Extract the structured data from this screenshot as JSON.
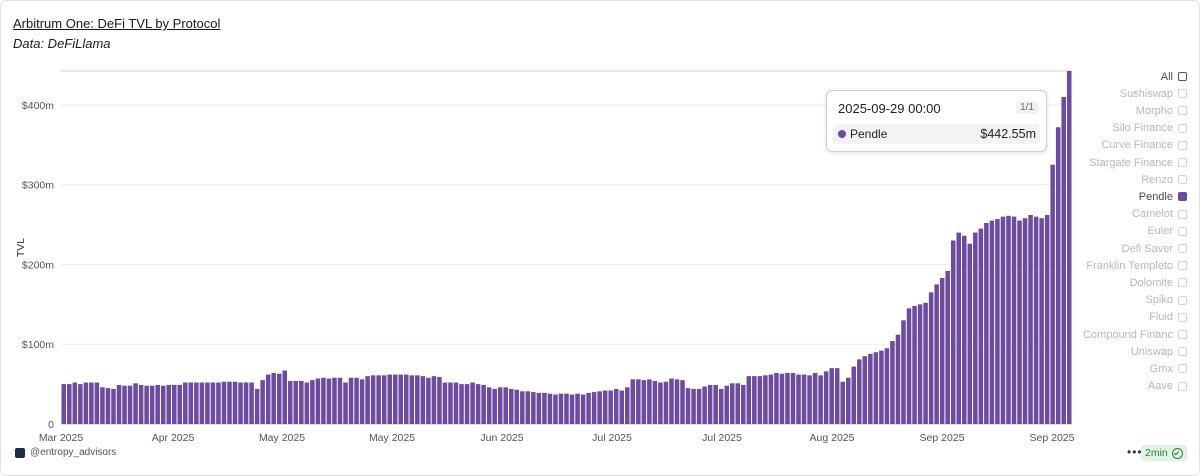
{
  "header": {
    "title": "Arbitrum One: DeFi TVL by Protocol",
    "subtitle": "Data: DeFiLlama"
  },
  "chart_data": {
    "type": "bar",
    "ylabel": "TVL",
    "ylim": [
      0,
      442.55
    ],
    "y_ticks": [
      {
        "value": 0,
        "label": "0"
      },
      {
        "value": 100,
        "label": "$100m"
      },
      {
        "value": 200,
        "label": "$200m"
      },
      {
        "value": 300,
        "label": "$300m"
      },
      {
        "value": 400,
        "label": "$400m"
      }
    ],
    "x_ticks": [
      "Mar 2025",
      "Apr 2025",
      "May 2025",
      "May 2025",
      "Jun 2025",
      "Jul 2025",
      "Jul 2025",
      "Aug 2025",
      "Sep 2025",
      "Sep 2025"
    ],
    "bar_color": "#6d4b9e",
    "grid": true,
    "legend_position": "right",
    "series": [
      {
        "name": "Pendle",
        "values": [
          50,
          50,
          52,
          50,
          52,
          52,
          52,
          46,
          45,
          44,
          49,
          48,
          48,
          51,
          49,
          48,
          48,
          49,
          48,
          49,
          49,
          49,
          52,
          52,
          52,
          52,
          52,
          52,
          52,
          53,
          53,
          53,
          52,
          52,
          52,
          44,
          55,
          62,
          64,
          63,
          67,
          54,
          54,
          54,
          52,
          55,
          57,
          58,
          57,
          58,
          58,
          52,
          58,
          58,
          56,
          60,
          61,
          61,
          61,
          62,
          62,
          62,
          62,
          61,
          61,
          60,
          58,
          60,
          59,
          52,
          52,
          52,
          50,
          50,
          52,
          50,
          49,
          46,
          44,
          46,
          46,
          44,
          43,
          41,
          41,
          40,
          39,
          39,
          38,
          37,
          38,
          38,
          37,
          38,
          37,
          39,
          40,
          41,
          42,
          42,
          44,
          42,
          46,
          56,
          56,
          55,
          56,
          54,
          52,
          53,
          57,
          56,
          55,
          45,
          44,
          44,
          47,
          49,
          49,
          44,
          48,
          51,
          51,
          49,
          60,
          60,
          60,
          61,
          62,
          64,
          63,
          64,
          64,
          62,
          62,
          61,
          64,
          61,
          66,
          70,
          70,
          53,
          58,
          72,
          81,
          85,
          88,
          90,
          92,
          95,
          104,
          112,
          130,
          145,
          148,
          150,
          152,
          165,
          175,
          183,
          192,
          230,
          240,
          236,
          226,
          240,
          245,
          252,
          255,
          257,
          260,
          261,
          260,
          255,
          258,
          262,
          260,
          258,
          262,
          325,
          372,
          410,
          442.55
        ]
      }
    ],
    "tooltip": {
      "date": "2025-09-29 00:00",
      "page": "1/1",
      "series": "Pendle",
      "value": "$442.55m"
    }
  },
  "legend": {
    "items": [
      {
        "label": "All",
        "state": "active"
      },
      {
        "label": "Sushiswap",
        "state": "inactive"
      },
      {
        "label": "Morpho",
        "state": "inactive"
      },
      {
        "label": "Silo Finance",
        "state": "inactive"
      },
      {
        "label": "Curve Finance",
        "state": "inactive"
      },
      {
        "label": "Stargate Finance",
        "state": "inactive"
      },
      {
        "label": "Renzo",
        "state": "inactive"
      },
      {
        "label": "Pendle",
        "state": "selected"
      },
      {
        "label": "Camelot",
        "state": "inactive"
      },
      {
        "label": "Euler",
        "state": "inactive"
      },
      {
        "label": "Defi Saver",
        "state": "inactive"
      },
      {
        "label": "Franklin Templeto",
        "state": "inactive"
      },
      {
        "label": "Dolomite",
        "state": "inactive"
      },
      {
        "label": "Spiko",
        "state": "inactive"
      },
      {
        "label": "Fluid",
        "state": "inactive"
      },
      {
        "label": "Compound Financ",
        "state": "inactive"
      },
      {
        "label": "Uniswap",
        "state": "inactive"
      },
      {
        "label": "Gmx",
        "state": "inactive"
      },
      {
        "label": "Aave",
        "state": "inactive"
      }
    ]
  },
  "footer": {
    "handle": "@entropy_advisors",
    "more": "•••",
    "freshness": "2min"
  }
}
